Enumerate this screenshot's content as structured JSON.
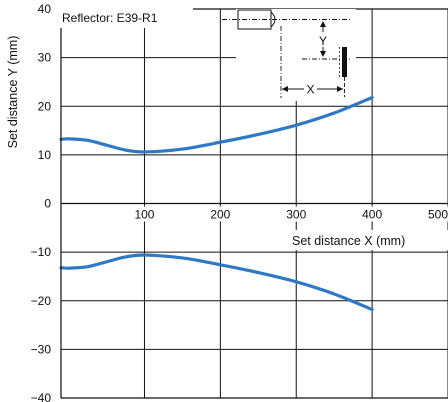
{
  "chart_data": {
    "type": "line",
    "title": "Reflector: E39-R1",
    "xlabel": "Set distance X (mm)",
    "ylabel": "Set distance Y (mm)",
    "xlim": [
      -10,
      500
    ],
    "ylim": [
      -40,
      40
    ],
    "x_ticks": [
      100,
      200,
      300,
      400,
      500
    ],
    "y_ticks": [
      40,
      30,
      20,
      10,
      0,
      -10,
      -20,
      -30,
      -40
    ],
    "x_tick_labels": [
      "100",
      "200",
      "300",
      "400",
      "500"
    ],
    "y_tick_labels": [
      "40",
      "30",
      "20",
      "10",
      "0",
      "−10",
      "−20",
      "−30",
      "−40"
    ],
    "grid": true,
    "inset_labels": {
      "y": "Y",
      "x": "X"
    },
    "series": [
      {
        "color": "#2f78c4",
        "x": [
          -10,
          0,
          25,
          50,
          75,
          100,
          150,
          200,
          250,
          300,
          350,
          400
        ],
        "y": [
          13.2,
          13.3,
          13.0,
          12.0,
          11.0,
          10.6,
          11.2,
          12.6,
          14.2,
          16.1,
          18.6,
          21.8
        ]
      },
      {
        "color": "#2f78c4",
        "x": [
          -10,
          0,
          25,
          50,
          75,
          100,
          150,
          200,
          250,
          300,
          350,
          400
        ],
        "y": [
          -13.2,
          -13.3,
          -13.0,
          -12.0,
          -11.0,
          -10.6,
          -11.2,
          -12.6,
          -14.2,
          -16.1,
          -18.6,
          -21.8
        ]
      }
    ]
  }
}
